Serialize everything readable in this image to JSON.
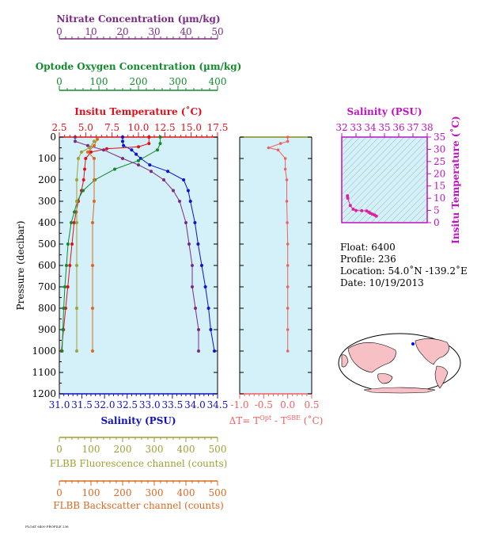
{
  "chart_data": {
    "type": "line",
    "main": {
      "ylabel": "Pressure (decibar)",
      "y_ticks": [
        0,
        100,
        200,
        300,
        400,
        500,
        600,
        700,
        800,
        900,
        1000,
        1100,
        1200
      ],
      "ylim": [
        0,
        1200
      ],
      "axes": {
        "nitrate": {
          "label": "Nitrate Concentration (µm/kg)",
          "ticks": [
            0,
            10,
            20,
            30,
            40,
            50
          ],
          "range": [
            0,
            50
          ],
          "color": "#7b2a86"
        },
        "oxygen": {
          "label": "Optode Oxygen Concentration (µm/kg)",
          "ticks": [
            0,
            100,
            200,
            300,
            400
          ],
          "range": [
            0,
            400
          ],
          "color": "#108a2c"
        },
        "temperature": {
          "label": "Insitu Temperature (˚C)",
          "ticks": [
            "2.5",
            "5.0",
            "7.5",
            "10.0",
            "12.5",
            "15.0",
            "17.5"
          ],
          "range": [
            2.5,
            17.5
          ],
          "color": "#e0101a"
        },
        "salinity": {
          "label": "Salinity (PSU)",
          "ticks": [
            "31.0",
            "31.5",
            "32.0",
            "32.5",
            "33.0",
            "33.5",
            "34.0",
            "34.5"
          ],
          "range": [
            31.0,
            34.5
          ],
          "color": "#1010c0"
        },
        "fluorescence": {
          "label": "FLBB Fluorescence channel (counts)",
          "ticks": [
            0,
            100,
            200,
            300,
            400,
            500
          ],
          "range": [
            0,
            500
          ],
          "color": "#a0a035"
        },
        "backscatter": {
          "label": "FLBB Backscatter channel (counts)",
          "ticks": [
            0,
            100,
            200,
            300,
            400,
            500
          ],
          "range": [
            0,
            500
          ],
          "color": "#d86a22"
        }
      },
      "series": [
        {
          "key": "salinity",
          "color": "#1010d0",
          "points": [
            [
              32.4,
              0
            ],
            [
              32.4,
              20
            ],
            [
              32.42,
              40
            ],
            [
              32.6,
              60
            ],
            [
              32.7,
              80
            ],
            [
              32.8,
              100
            ],
            [
              33.0,
              130
            ],
            [
              33.4,
              160
            ],
            [
              33.75,
              200
            ],
            [
              33.85,
              250
            ],
            [
              33.9,
              300
            ],
            [
              34.0,
              400
            ],
            [
              34.07,
              500
            ],
            [
              34.15,
              600
            ],
            [
              34.23,
              700
            ],
            [
              34.3,
              800
            ],
            [
              34.35,
              900
            ],
            [
              34.43,
              1000
            ]
          ]
        },
        {
          "key": "temperature",
          "color": "#e0101a",
          "points": [
            [
              11.0,
              0
            ],
            [
              11.0,
              30
            ],
            [
              10.0,
              45
            ],
            [
              7.0,
              55
            ],
            [
              5.5,
              70
            ],
            [
              5.0,
              100
            ],
            [
              4.9,
              150
            ],
            [
              4.8,
              200
            ],
            [
              4.6,
              250
            ],
            [
              4.3,
              300
            ],
            [
              4.1,
              350
            ],
            [
              3.9,
              400
            ],
            [
              3.7,
              500
            ],
            [
              3.5,
              600
            ],
            [
              3.3,
              700
            ],
            [
              3.1,
              800
            ],
            [
              2.9,
              900
            ],
            [
              2.7,
              1000
            ]
          ]
        },
        {
          "key": "oxygen",
          "color": "#108a2c",
          "points": [
            [
              255,
              0
            ],
            [
              255,
              30
            ],
            [
              248,
              60
            ],
            [
              200,
              110
            ],
            [
              140,
              150
            ],
            [
              90,
              200
            ],
            [
              60,
              250
            ],
            [
              45,
              300
            ],
            [
              38,
              350
            ],
            [
              30,
              400
            ],
            [
              22,
              500
            ],
            [
              18,
              600
            ],
            [
              14,
              700
            ],
            [
              11,
              800
            ],
            [
              9,
              900
            ],
            [
              7,
              1000
            ]
          ]
        },
        {
          "key": "nitrate",
          "color": "#7b2a86",
          "points": [
            [
              5,
              0
            ],
            [
              5,
              20
            ],
            [
              9,
              40
            ],
            [
              14,
              60
            ],
            [
              20,
              100
            ],
            [
              25,
              130
            ],
            [
              29,
              160
            ],
            [
              33,
              200
            ],
            [
              36,
              250
            ],
            [
              38,
              300
            ],
            [
              40,
              400
            ],
            [
              41,
              500
            ],
            [
              42,
              600
            ],
            [
              42,
              700
            ],
            [
              43,
              800
            ],
            [
              44,
              900
            ],
            [
              44,
              1000
            ]
          ]
        },
        {
          "key": "fluorescence",
          "color": "#a0a035",
          "points": [
            [
              110,
              20
            ],
            [
              95,
              50
            ],
            [
              70,
              70
            ],
            [
              60,
              100
            ],
            [
              55,
              200
            ],
            [
              55,
              300
            ],
            [
              55,
              400
            ],
            [
              55,
              600
            ],
            [
              55,
              800
            ],
            [
              55,
              1000
            ]
          ]
        },
        {
          "key": "backscatter",
          "color": "#d86a22",
          "points": [
            [
              120,
              10
            ],
            [
              110,
              40
            ],
            [
              90,
              70
            ],
            [
              110,
              100
            ],
            [
              110,
              200
            ],
            [
              110,
              300
            ],
            [
              105,
              400
            ],
            [
              105,
              600
            ],
            [
              105,
              800
            ],
            [
              105,
              1000
            ]
          ]
        }
      ]
    },
    "delta": {
      "xlabel": "ΔT= T",
      "xlabel_sup1": "Opt",
      "xlabel_mid": " - T",
      "xlabel_sup2": "SBE",
      "xlabel_end": " (˚C)",
      "ticks": [
        "-1.0",
        "-0.5",
        "0.0",
        "0.5"
      ],
      "xlim": [
        -1.0,
        0.5
      ],
      "ylim": [
        0,
        1200
      ],
      "color": "#f06060",
      "points": [
        [
          0.0,
          0
        ],
        [
          0.0,
          20
        ],
        [
          -0.15,
          30
        ],
        [
          -0.4,
          50
        ],
        [
          -0.2,
          60
        ],
        [
          -0.05,
          100
        ],
        [
          -0.05,
          150
        ],
        [
          -0.02,
          200
        ],
        [
          -0.02,
          300
        ],
        [
          -0.01,
          400
        ],
        [
          0.0,
          500
        ],
        [
          0.0,
          600
        ],
        [
          0.0,
          700
        ],
        [
          0.0,
          800
        ],
        [
          0.0,
          900
        ],
        [
          0.0,
          1000
        ]
      ]
    },
    "ts": {
      "xlabel": "Salinity (PSU)",
      "x_ticks": [
        32,
        33,
        34,
        35,
        36,
        37,
        38
      ],
      "xlim": [
        32,
        38
      ],
      "ylabel": "Insitu Temperature (˚C)",
      "y_ticks": [
        0,
        5,
        10,
        15,
        20,
        25,
        30,
        35
      ],
      "ylim": [
        0,
        35
      ],
      "color": "#e020a0",
      "points": [
        [
          32.4,
          11.0
        ],
        [
          32.42,
          10.0
        ],
        [
          32.6,
          7.0
        ],
        [
          32.8,
          5.5
        ],
        [
          33.0,
          5.0
        ],
        [
          33.4,
          4.9
        ],
        [
          33.75,
          4.8
        ],
        [
          33.9,
          4.3
        ],
        [
          34.0,
          3.9
        ],
        [
          34.15,
          3.5
        ],
        [
          34.3,
          3.1
        ],
        [
          34.43,
          2.7
        ]
      ]
    },
    "info": {
      "float": "Float:  6400",
      "profile": "Profile:  236",
      "location": "Location:  54.0˚N  -139.2˚E",
      "date": "Date:  10/19/2013"
    },
    "map": {
      "marker_lat": 54.0,
      "marker_lon": -139.2
    },
    "footer_note": "FLOAT 6400 PROFILE 236"
  }
}
